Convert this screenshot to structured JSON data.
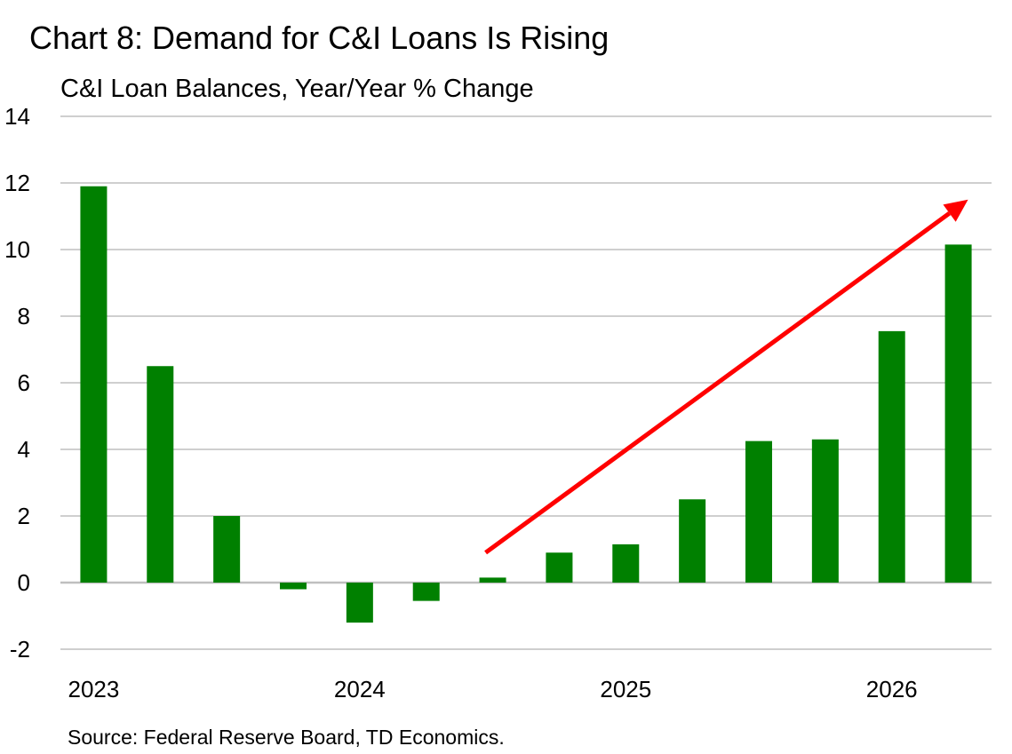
{
  "title": "Chart 8: Demand for C&I Loans Is Rising",
  "subtitle": "C&I Loan Balances, Year/Year % Change",
  "source": "Source: Federal Reserve Board, TD Economics.",
  "colors": {
    "bar": "#008000",
    "arrow": "#ff0000",
    "grid": "#bfbfbf",
    "zero": "#bfbfbf"
  },
  "chart_data": {
    "type": "bar",
    "ylim": [
      -2,
      14
    ],
    "yticks": [
      14,
      12,
      10,
      8,
      6,
      4,
      2,
      0,
      -2
    ],
    "xtick_labels": [
      "2023",
      "2024",
      "2025",
      "2026"
    ],
    "grid": true,
    "values": [
      11.9,
      6.5,
      2.0,
      -0.2,
      -1.2,
      -0.55,
      0.15,
      0.9,
      1.15,
      2.5,
      4.25,
      4.3,
      7.55,
      10.15
    ],
    "annotation": {
      "type": "arrow",
      "from": [
        6.0,
        0.9
      ],
      "to": [
        13.2,
        11.5
      ]
    }
  }
}
